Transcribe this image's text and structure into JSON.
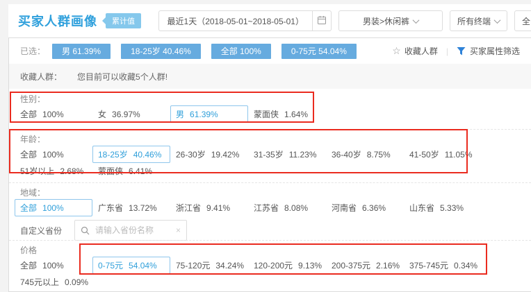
{
  "header": {
    "title": "买家人群画像",
    "badge": "累计值",
    "date_button": "最近1天（2018-05-01~2018-05-01）",
    "category_button": "男装>休闲裤",
    "terminal_button": "所有终端",
    "cutoff_button": "全"
  },
  "icons": {
    "calendar": "calendar-icon",
    "dropdown": "chevron-down-icon",
    "favorite": "star-icon",
    "filter": "funnel-icon",
    "search": "search-icon",
    "clear": "x-icon"
  },
  "selected_bar": {
    "label": "已选：",
    "tags": [
      "男 61.39%",
      "18-25岁 40.46%",
      "全部 100%",
      "0-75元 54.04%"
    ],
    "favorite_label": "收藏人群",
    "filter_label": "买家属性筛选"
  },
  "favorite_row": {
    "label": "收藏人群：",
    "message": "您目前可以收藏5个人群!"
  },
  "sections": [
    {
      "id": "gender",
      "label": "性别：",
      "rows": [
        [
          {
            "label": "全部",
            "value": "100%"
          },
          {
            "label": "女",
            "value": "36.97%"
          },
          {
            "label": "男",
            "value": "61.39%",
            "selected": true
          },
          {
            "label": "蒙面侠",
            "value": "1.64%"
          }
        ]
      ]
    },
    {
      "id": "age",
      "label": "年龄：",
      "rows": [
        [
          {
            "label": "全部",
            "value": "100%"
          },
          {
            "label": "18-25岁",
            "value": "40.46%",
            "selected": true
          },
          {
            "label": "26-30岁",
            "value": "19.42%"
          },
          {
            "label": "31-35岁",
            "value": "11.23%"
          },
          {
            "label": "36-40岁",
            "value": "8.75%"
          },
          {
            "label": "41-50岁",
            "value": "11.05%"
          }
        ],
        [
          {
            "label": "51岁以上",
            "value": "2.68%"
          },
          {
            "label": "蒙面侠",
            "value": "6.41%"
          }
        ]
      ]
    },
    {
      "id": "region",
      "label": "地域：",
      "rows": [
        [
          {
            "label": "全部",
            "value": "100%",
            "selected": true
          },
          {
            "label": "广东省",
            "value": "13.72%"
          },
          {
            "label": "浙江省",
            "value": "9.41%"
          },
          {
            "label": "江苏省",
            "value": "8.08%"
          },
          {
            "label": "河南省",
            "value": "6.36%"
          },
          {
            "label": "山东省",
            "value": "5.33%"
          }
        ]
      ],
      "custom_province": {
        "label": "自定义省份",
        "placeholder": "请输入省份名称"
      }
    },
    {
      "id": "price",
      "label": "价格",
      "rows": [
        [
          {
            "label": "全部",
            "value": "100%"
          },
          {
            "label": "0-75元",
            "value": "54.04%",
            "selected": true
          },
          {
            "label": "75-120元",
            "value": "34.24%"
          },
          {
            "label": "120-200元",
            "value": "9.13%"
          },
          {
            "label": "200-375元",
            "value": "2.16%"
          },
          {
            "label": "375-745元",
            "value": "0.34%"
          }
        ],
        [
          {
            "label": "745元以上",
            "value": "0.09%"
          }
        ]
      ]
    }
  ],
  "annotations": {
    "color": "#ea2b1f",
    "boxes": [
      "gender-section",
      "age-section",
      "price-options"
    ]
  },
  "colors": {
    "accent_blue": "#2fa0dc",
    "badge_blue": "#85c8ec",
    "tag_blue": "#66abdf",
    "selected_border": "#8ec6ec",
    "filter_icon_blue": "#2e82d8",
    "annotation_red": "#ea2b1f"
  }
}
